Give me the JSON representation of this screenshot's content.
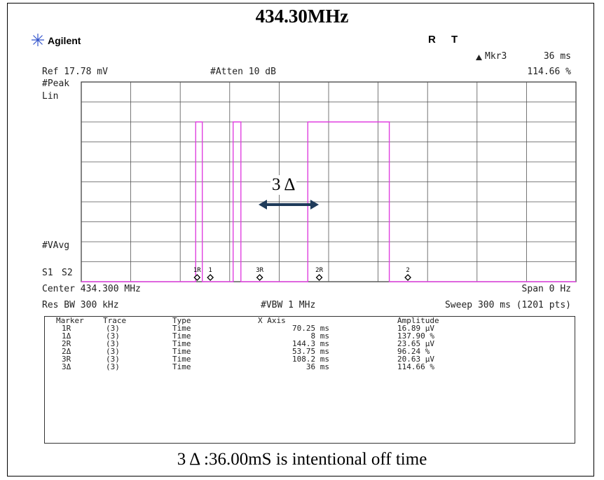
{
  "title": "434.30MHz",
  "brand": "Agilent",
  "status_r": "R",
  "status_t": "T",
  "marker_readout": {
    "label": "Mkr3",
    "value_time": "36 ms",
    "value_amp": "114.66 %"
  },
  "ref_level": "Ref 17.78 mV",
  "atten": "#Atten 10 dB",
  "detector": "#Peak",
  "scale": "Lin",
  "vavg": "#VAvg",
  "s1": "S1",
  "s2": "S2",
  "center": "Center 434.300 MHz",
  "span": "Span 0 Hz",
  "res_bw": "Res BW 300 kHz",
  "vbw": "#VBW 1 MHz",
  "sweep": "Sweep 300 ms (1201 pts)",
  "delta_annotation": "3 Δ",
  "caption": "3 Δ :36.00mS is intentional off time",
  "marker_table": {
    "headers": [
      "Marker",
      "Trace",
      "Type",
      "X Axis",
      "Amplitude"
    ],
    "rows": [
      [
        "1R",
        "(3)",
        "Time",
        "70.25 ms",
        "16.89 μV"
      ],
      [
        "1Δ",
        "(3)",
        "Time",
        "8 ms",
        "137.90 %"
      ],
      [
        "2R",
        "(3)",
        "Time",
        "144.3 ms",
        "23.65 μV"
      ],
      [
        "2Δ",
        "(3)",
        "Time",
        "53.75 ms",
        "96.24 %"
      ],
      [
        "3R",
        "(3)",
        "Time",
        "108.2 ms",
        "20.63 μV"
      ],
      [
        "3Δ",
        "(3)",
        "Time",
        "36 ms",
        "114.66 %"
      ]
    ]
  },
  "chart_data": {
    "type": "line",
    "title": "434.30MHz",
    "xlabel": "",
    "ylabel": "",
    "x_unit": "ms",
    "xlim": [
      0,
      300
    ],
    "ylim": [
      0,
      10
    ],
    "grid": true,
    "trace_color": "#e040e0",
    "series": [
      {
        "x": [
          0,
          69.4,
          69.4,
          73.4,
          73.4,
          92.1,
          92.1,
          96.8,
          96.8,
          137.4,
          137.4,
          186.8,
          186.8,
          300
        ],
        "values": [
          0,
          0,
          8,
          8,
          0,
          0,
          8,
          8,
          0,
          0,
          8,
          8,
          0,
          0
        ]
      }
    ],
    "markers": [
      {
        "label": "1R",
        "x": 70.25
      },
      {
        "label": "1",
        "x": 78.25
      },
      {
        "label": "3R",
        "x": 108.2
      },
      {
        "label": "2R",
        "x": 144.3
      },
      {
        "label": "2",
        "x": 198.05
      }
    ]
  }
}
